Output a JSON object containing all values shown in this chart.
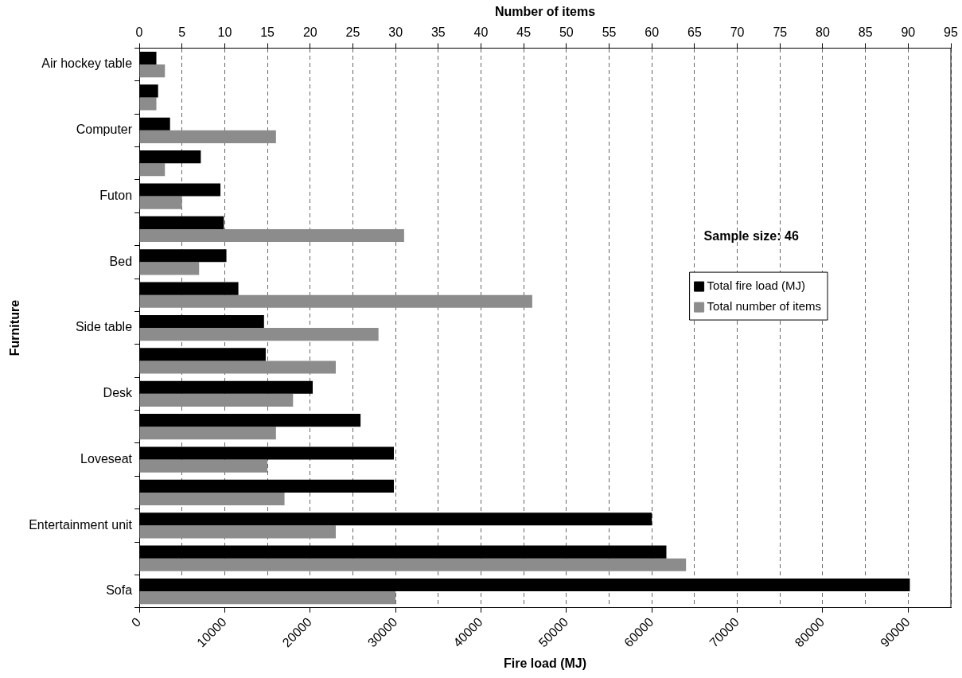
{
  "chart_data": {
    "type": "bar",
    "orientation": "horizontal",
    "xlabel": "Fire load (MJ)",
    "x2label": "Number of items",
    "ylabel": "Furniture",
    "categories": [
      "Air hockey table",
      null,
      "Computer",
      null,
      "Futon",
      null,
      "Bed",
      null,
      "Side table",
      null,
      "Desk",
      null,
      "Loveseat",
      null,
      "Entertainment unit",
      null,
      "Sofa"
    ],
    "series": [
      {
        "name": "Total fire load (MJ)",
        "color": "#000000",
        "values": [
          2000,
          2200,
          3600,
          7200,
          9500,
          9900,
          10200,
          11600,
          14600,
          14800,
          20300,
          25900,
          29800,
          29800,
          60000,
          61700,
          90200
        ]
      },
      {
        "name": "Total number of items",
        "color": "#8c8c8c",
        "axis": "x2",
        "values": [
          3,
          2,
          16,
          3,
          5,
          31,
          7,
          46,
          28,
          23,
          18,
          16,
          15,
          17,
          23,
          64,
          30
        ]
      }
    ],
    "xlim": [
      0,
      95000
    ],
    "xticks": [
      0,
      10000,
      20000,
      30000,
      40000,
      50000,
      60000,
      70000,
      80000,
      90000
    ],
    "x2lim": [
      0,
      95
    ],
    "x2ticks": [
      0,
      5,
      10,
      15,
      20,
      25,
      30,
      35,
      40,
      45,
      50,
      55,
      60,
      65,
      70,
      75,
      80,
      85,
      90,
      95
    ],
    "grid": "x2",
    "legend": "right",
    "annotations": [
      "Sample size: 46"
    ]
  }
}
